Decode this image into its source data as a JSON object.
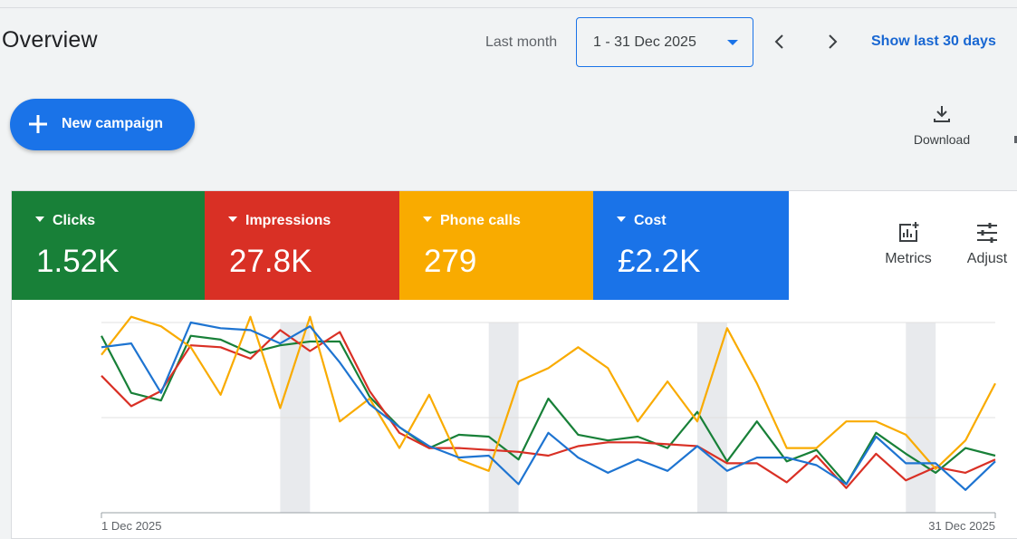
{
  "header": {
    "title": "Overview",
    "range_label": "Last month",
    "date_range": "1 - 31 Dec 2025",
    "show_link": "Show last 30 days",
    "icons": {
      "prev": "chevron-left-icon",
      "next": "chevron-right-icon",
      "dropdown": "caret-down-icon"
    }
  },
  "actions": {
    "new_campaign": "New campaign",
    "download": "Download"
  },
  "metrics": [
    {
      "label": "Clicks",
      "value": "1.52K",
      "color": "#188038"
    },
    {
      "label": "Impressions",
      "value": "27.8K",
      "color": "#d93025"
    },
    {
      "label": "Phone calls",
      "value": "279",
      "color": "#f9ab00"
    },
    {
      "label": "Cost",
      "value": "£2.2K",
      "color": "#1a73e8"
    }
  ],
  "tools": {
    "metrics": "Metrics",
    "adjust": "Adjust"
  },
  "chart_data": {
    "type": "line",
    "x_start": "1 Dec 2025",
    "x_end": "31 Dec 2025",
    "days": 31,
    "ylim": [
      0,
      100
    ],
    "grid": true,
    "weekend_bands": [
      [
        6,
        7
      ],
      [
        13,
        14
      ],
      [
        20,
        21
      ],
      [
        27,
        28
      ]
    ],
    "series": [
      {
        "name": "Clicks",
        "color": "#188038",
        "values": [
          93,
          63,
          59,
          93,
          91,
          84,
          88,
          90,
          90,
          61,
          45,
          34,
          41,
          40,
          28,
          60,
          41,
          38,
          40,
          34,
          53,
          27,
          48,
          27,
          33,
          15,
          42,
          31,
          21,
          34,
          30
        ]
      },
      {
        "name": "Impressions",
        "color": "#d93025",
        "values": [
          72,
          56,
          64,
          88,
          87,
          81,
          96,
          85,
          95,
          64,
          42,
          34,
          34,
          33,
          32,
          30,
          35,
          37,
          37,
          36,
          35,
          26,
          26,
          16,
          30,
          13,
          31,
          17,
          24,
          21,
          28
        ]
      },
      {
        "name": "Phone calls",
        "color": "#f9ab00",
        "values": [
          83,
          103,
          98,
          87,
          62,
          103,
          55,
          103,
          48,
          60,
          34,
          62,
          28,
          22,
          69,
          76,
          87,
          76,
          48,
          69,
          48,
          97,
          68,
          34,
          34,
          48,
          48,
          41,
          23,
          38,
          68
        ]
      },
      {
        "name": "Cost",
        "color": "#1e74d1",
        "values": [
          87,
          89,
          63,
          100,
          97,
          96,
          89,
          98,
          79,
          57,
          45,
          35,
          29,
          30,
          15,
          42,
          29,
          21,
          28,
          22,
          35,
          22,
          29,
          29,
          25,
          15,
          40,
          26,
          26,
          12,
          27
        ]
      }
    ]
  }
}
